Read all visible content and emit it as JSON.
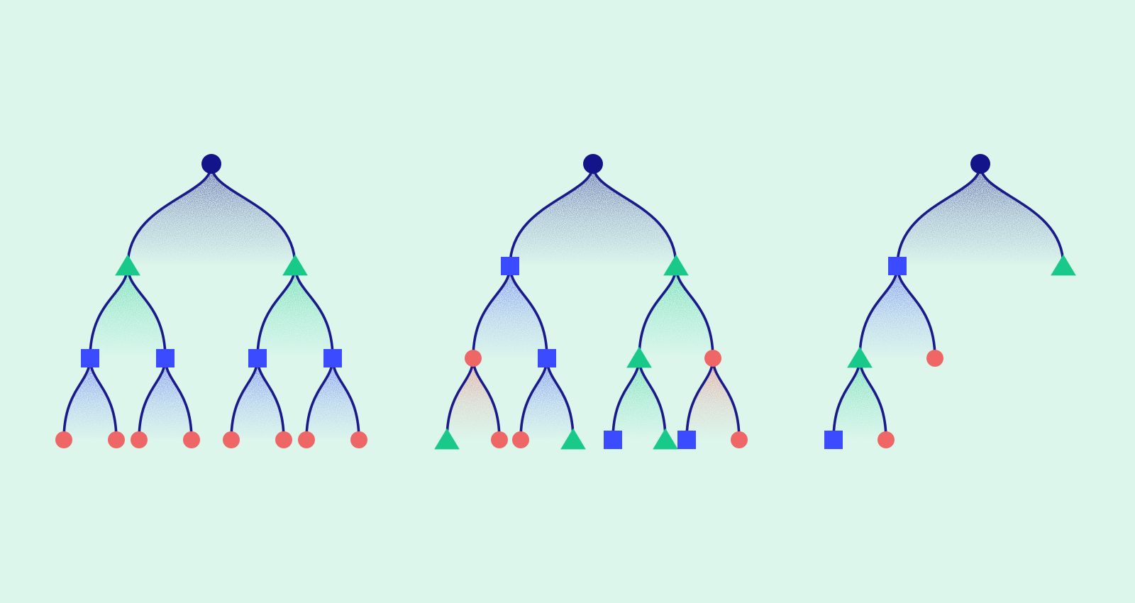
{
  "colors": {
    "background": "#dcf6ec",
    "edge": "#1a1a8a",
    "root": "#14148a",
    "square": "#3b4bff",
    "triangle": "#19c98a",
    "circle": "#ee6666"
  },
  "trees": [
    {
      "name": "full-binary-tree",
      "root": {
        "shape": "root",
        "children": [
          {
            "shape": "triangle",
            "children": [
              {
                "shape": "square",
                "children": [
                  {
                    "shape": "circle"
                  },
                  {
                    "shape": "circle"
                  }
                ]
              },
              {
                "shape": "square",
                "children": [
                  {
                    "shape": "circle"
                  },
                  {
                    "shape": "circle"
                  }
                ]
              }
            ]
          },
          {
            "shape": "triangle",
            "children": [
              {
                "shape": "square",
                "children": [
                  {
                    "shape": "circle"
                  },
                  {
                    "shape": "circle"
                  }
                ]
              },
              {
                "shape": "square",
                "children": [
                  {
                    "shape": "circle"
                  },
                  {
                    "shape": "circle"
                  }
                ]
              }
            ]
          }
        ]
      }
    },
    {
      "name": "mixed-binary-tree",
      "root": {
        "shape": "root",
        "children": [
          {
            "shape": "square",
            "children": [
              {
                "shape": "circle",
                "children": [
                  {
                    "shape": "triangle"
                  },
                  {
                    "shape": "circle"
                  }
                ]
              },
              {
                "shape": "square",
                "children": [
                  {
                    "shape": "circle"
                  },
                  {
                    "shape": "triangle"
                  }
                ]
              }
            ]
          },
          {
            "shape": "triangle",
            "children": [
              {
                "shape": "triangle",
                "children": [
                  {
                    "shape": "square"
                  },
                  {
                    "shape": "triangle"
                  }
                ]
              },
              {
                "shape": "circle",
                "children": [
                  {
                    "shape": "square"
                  },
                  {
                    "shape": "circle"
                  }
                ]
              }
            ]
          }
        ]
      }
    },
    {
      "name": "sparse-tree",
      "root": {
        "shape": "root",
        "children": [
          {
            "shape": "square",
            "children": [
              {
                "shape": "triangle",
                "children": [
                  {
                    "shape": "square"
                  },
                  {
                    "shape": "circle"
                  }
                ]
              },
              {
                "shape": "circle"
              }
            ]
          },
          {
            "shape": "triangle"
          }
        ]
      }
    }
  ]
}
